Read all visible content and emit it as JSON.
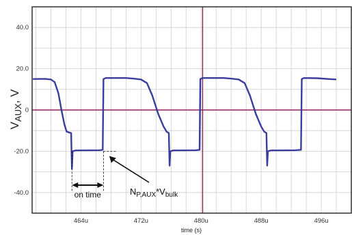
{
  "chart_data": {
    "type": "line",
    "xlabel": "time (s)",
    "ylabel_main": "V",
    "ylabel_sub": "AUX",
    "ylabel_tail": ", V",
    "xlim": [
      457.5,
      500
    ],
    "ylim": [
      -50,
      50
    ],
    "grid": true,
    "x_ticks": [
      464,
      472,
      480,
      488,
      496
    ],
    "x_tick_labels": [
      "464u",
      "472u",
      "480u",
      "488u",
      "496u"
    ],
    "y_ticks": [
      40,
      20,
      0,
      -20,
      -40
    ],
    "y_tick_labels": [
      "40.0",
      "20.0",
      "0",
      "-20.0",
      "-40.0"
    ],
    "reference_lines": {
      "x": 480.2,
      "y": 0
    },
    "colors": {
      "series": "#3a3d9e",
      "reference": "#8b2158",
      "grid": "#cfcfcf",
      "frame": "#222222"
    },
    "series": [
      {
        "points": [
          [
            457.6,
            15.0
          ],
          [
            459.2,
            15.1
          ],
          [
            460.0,
            14.8
          ],
          [
            460.5,
            13.5
          ],
          [
            461.0,
            8.0
          ],
          [
            461.4,
            0.0
          ],
          [
            461.8,
            -7.0
          ],
          [
            462.1,
            -10.5
          ],
          [
            462.7,
            -11.2
          ],
          [
            462.8,
            -28.5
          ],
          [
            462.9,
            -20.0
          ],
          [
            463.3,
            -19.6
          ],
          [
            466.5,
            -19.5
          ],
          [
            466.9,
            -19.3
          ],
          [
            467.0,
            15.0
          ],
          [
            467.3,
            15.5
          ],
          [
            470.0,
            15.5
          ],
          [
            471.0,
            15.2
          ],
          [
            472.0,
            14.8
          ],
          [
            472.8,
            13.0
          ],
          [
            473.5,
            7.0
          ],
          [
            474.3,
            -2.0
          ],
          [
            475.0,
            -8.0
          ],
          [
            475.4,
            -10.5
          ],
          [
            475.7,
            -11.2
          ],
          [
            475.8,
            -27.0
          ],
          [
            475.9,
            -20.0
          ],
          [
            476.3,
            -19.6
          ],
          [
            479.3,
            -19.5
          ],
          [
            479.8,
            -19.3
          ],
          [
            479.9,
            15.0
          ],
          [
            480.2,
            15.5
          ],
          [
            483.0,
            15.5
          ],
          [
            484.0,
            15.2
          ],
          [
            485.0,
            14.8
          ],
          [
            485.8,
            13.0
          ],
          [
            486.5,
            7.0
          ],
          [
            487.3,
            -2.0
          ],
          [
            488.0,
            -8.0
          ],
          [
            488.4,
            -10.5
          ],
          [
            488.7,
            -11.2
          ],
          [
            488.8,
            -27.0
          ],
          [
            488.9,
            -20.0
          ],
          [
            489.3,
            -19.6
          ],
          [
            492.5,
            -19.5
          ],
          [
            493.3,
            -19.3
          ],
          [
            493.4,
            15.0
          ],
          [
            493.7,
            15.5
          ],
          [
            495.5,
            15.4
          ],
          [
            497.0,
            15.0
          ],
          [
            498.0,
            14.8
          ]
        ]
      }
    ],
    "annotations": {
      "on_time": {
        "text": "on time",
        "x_start": 462.8,
        "x_end": 467.0
      },
      "level": {
        "text_main": "N",
        "text_sub1": "P,AUX",
        "text_mid": "*V",
        "text_sub2": "bulk",
        "x": 468.5,
        "y": -20.0
      }
    }
  }
}
